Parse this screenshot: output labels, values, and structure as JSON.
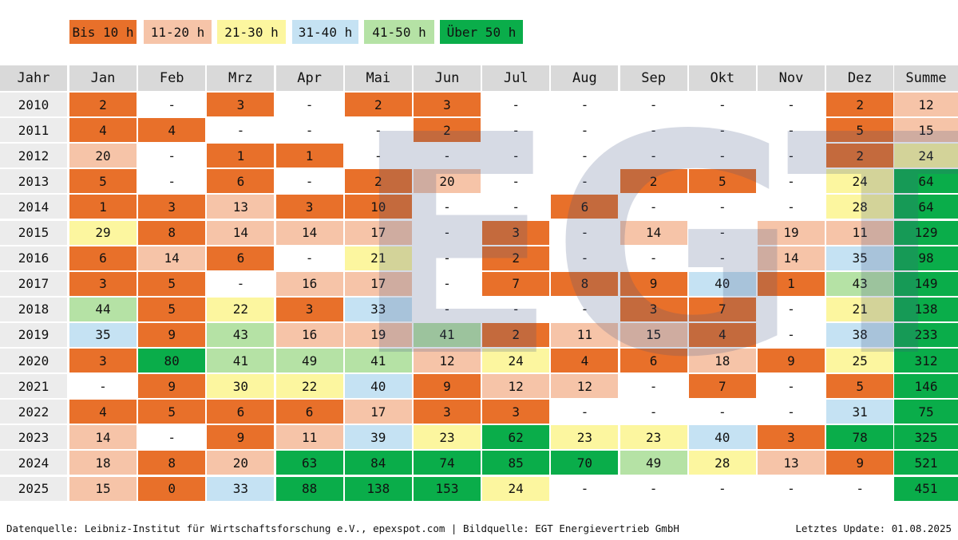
{
  "legend": [
    {
      "label": "Bis 10 h",
      "color": "#e8702a",
      "max": 10
    },
    {
      "label": "11-20 h",
      "color": "#f6c4a8",
      "max": 20
    },
    {
      "label": "21-30 h",
      "color": "#fcf69f",
      "max": 30
    },
    {
      "label": "31-40 h",
      "color": "#c5e2f3",
      "max": 40
    },
    {
      "label": "41-50 h",
      "color": "#b5e2a5",
      "max": 50
    },
    {
      "label": "Über 50 h",
      "color": "#0aad4a",
      "max": null
    }
  ],
  "watermark": "EGT",
  "table": {
    "header": [
      "Jahr",
      "Jan",
      "Feb",
      "Mrz",
      "Apr",
      "Mai",
      "Jun",
      "Jul",
      "Aug",
      "Sep",
      "Okt",
      "Nov",
      "Dez",
      "Summe"
    ],
    "rows": [
      [
        2010,
        2,
        "-",
        3,
        "-",
        2,
        3,
        "-",
        "-",
        "-",
        "-",
        "-",
        2,
        12
      ],
      [
        2011,
        4,
        4,
        "-",
        "-",
        "-",
        2,
        "-",
        "-",
        "-",
        "-",
        "-",
        5,
        15
      ],
      [
        2012,
        20,
        "-",
        1,
        1,
        "-",
        "-",
        "-",
        "-",
        "-",
        "-",
        "-",
        2,
        24
      ],
      [
        2013,
        5,
        "-",
        6,
        "-",
        2,
        20,
        "-",
        "-",
        2,
        5,
        "-",
        24,
        64
      ],
      [
        2014,
        1,
        3,
        13,
        3,
        10,
        "-",
        "-",
        6,
        "-",
        "-",
        "-",
        28,
        64
      ],
      [
        2015,
        29,
        8,
        14,
        14,
        17,
        "-",
        3,
        "-",
        14,
        "-",
        19,
        11,
        129
      ],
      [
        2016,
        6,
        14,
        6,
        "-",
        21,
        "-",
        2,
        "-",
        "-",
        "-",
        14,
        35,
        98
      ],
      [
        2017,
        3,
        5,
        "-",
        16,
        17,
        "-",
        7,
        8,
        9,
        40,
        1,
        43,
        149
      ],
      [
        2018,
        44,
        5,
        22,
        3,
        33,
        "-",
        "-",
        "-",
        3,
        7,
        "-",
        21,
        138
      ],
      [
        2019,
        35,
        9,
        43,
        16,
        19,
        41,
        2,
        11,
        15,
        4,
        "-",
        38,
        233
      ],
      [
        2020,
        3,
        80,
        41,
        49,
        41,
        12,
        24,
        4,
        6,
        18,
        9,
        25,
        312
      ],
      [
        2021,
        "-",
        9,
        30,
        22,
        40,
        9,
        12,
        12,
        "-",
        7,
        "-",
        5,
        146
      ],
      [
        2022,
        4,
        5,
        6,
        6,
        17,
        3,
        3,
        "-",
        "-",
        "-",
        "-",
        31,
        75
      ],
      [
        2023,
        14,
        "-",
        9,
        11,
        39,
        23,
        62,
        23,
        23,
        40,
        3,
        78,
        325
      ],
      [
        2024,
        18,
        8,
        20,
        63,
        84,
        74,
        85,
        70,
        49,
        28,
        13,
        9,
        521
      ],
      [
        2025,
        15,
        0,
        33,
        88,
        138,
        153,
        24,
        "-",
        "-",
        "-",
        "-",
        "-",
        451
      ]
    ]
  },
  "footer": {
    "source": "Datenquelle: Leibniz-Institut für Wirtschaftsforschung e.V., epexspot.com | Bildquelle: EGT Energievertrieb GmbH",
    "updated": "Letztes Update: 01.08.2025"
  }
}
